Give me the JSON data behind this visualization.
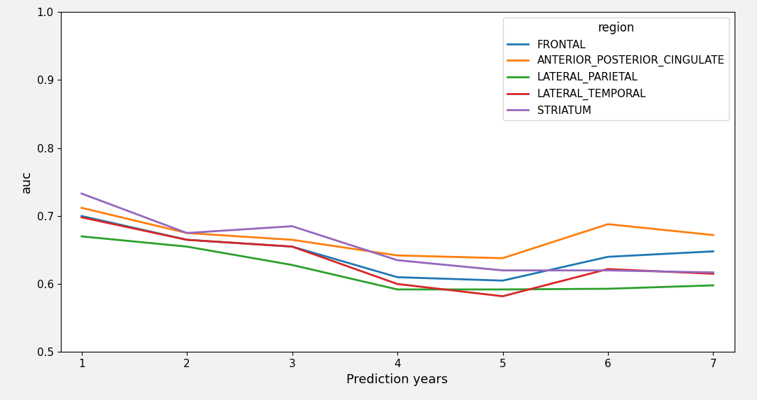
{
  "x": [
    1,
    2,
    3,
    4,
    5,
    6,
    7
  ],
  "series_order": [
    "FRONTAL",
    "ANTERIOR_POSTERIOR_CINGULATE",
    "LATERAL_PARIETAL",
    "LATERAL_TEMPORAL",
    "STRIATUM"
  ],
  "series": {
    "FRONTAL": [
      0.7,
      0.665,
      0.655,
      0.61,
      0.605,
      0.64,
      0.648
    ],
    "ANTERIOR_POSTERIOR_CINGULATE": [
      0.712,
      0.675,
      0.665,
      0.642,
      0.638,
      0.688,
      0.672
    ],
    "LATERAL_PARIETAL": [
      0.67,
      0.655,
      0.628,
      0.592,
      0.592,
      0.593,
      0.598
    ],
    "LATERAL_TEMPORAL": [
      0.698,
      0.665,
      0.655,
      0.6,
      0.582,
      0.622,
      0.615
    ],
    "STRIATUM": [
      0.733,
      0.675,
      0.685,
      0.635,
      0.62,
      0.62,
      0.617
    ]
  },
  "colors": {
    "FRONTAL": "#1f77b4",
    "ANTERIOR_POSTERIOR_CINGULATE": "#ff7f0e",
    "LATERAL_PARIETAL": "#2ca02c",
    "LATERAL_TEMPORAL": "#d62728",
    "STRIATUM": "#9467bd"
  },
  "legend_title": "region",
  "xlabel": "Prediction years",
  "ylabel": "auc",
  "ylim": [
    0.5,
    1.0
  ],
  "xlim": [
    0.8,
    7.2
  ],
  "yticks": [
    0.5,
    0.6,
    0.7,
    0.8,
    0.9,
    1.0
  ],
  "xticks": [
    1,
    2,
    3,
    4,
    5,
    6,
    7
  ],
  "linewidth": 2.0,
  "fig_facecolor": "#f2f2f2",
  "axes_facecolor": "#ffffff"
}
